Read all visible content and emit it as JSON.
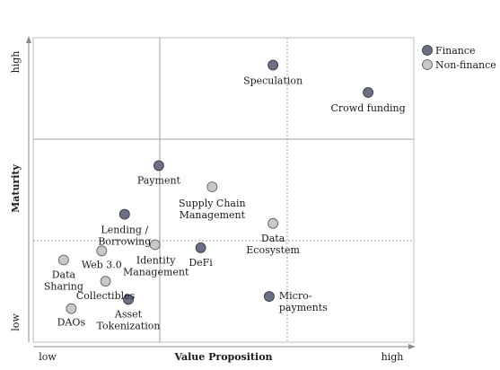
{
  "chart_data": {
    "type": "scatter",
    "title": "",
    "xlabel": "Value Proposition",
    "ylabel": "Maturity",
    "x_tick_labels": {
      "low": "low",
      "high": "high"
    },
    "y_tick_labels": {
      "low": "low",
      "high": "high"
    },
    "xlim": [
      0,
      100
    ],
    "ylim": [
      0,
      100
    ],
    "grid": "quadrant grid (thirds), solid at x=33.3, dotted at x=66.7; solid at y=66.7, dotted at y=33.3",
    "legend_position": "top-right",
    "colors": {
      "Finance": "#6b7085",
      "Non-finance": "#c8c8c8"
    },
    "series": [
      {
        "name": "Finance",
        "points": [
          {
            "label": "Speculation",
            "x": 63,
            "y": 91
          },
          {
            "label": "Crowd funding",
            "x": 88,
            "y": 82
          },
          {
            "label": "Payment",
            "x": 33,
            "y": 58
          },
          {
            "label": "Lending / Borrowing",
            "x": 24,
            "y": 42
          },
          {
            "label": "DeFi",
            "x": 44,
            "y": 31
          },
          {
            "label": "Micro-payments",
            "x": 62,
            "y": 15
          },
          {
            "label": "Asset Tokenization",
            "x": 25,
            "y": 14
          }
        ]
      },
      {
        "name": "Non-finance",
        "points": [
          {
            "label": "Supply Chain Management",
            "x": 47,
            "y": 51
          },
          {
            "label": "Data Ecosystem",
            "x": 63,
            "y": 39
          },
          {
            "label": "Identity Management",
            "x": 32,
            "y": 32
          },
          {
            "label": "Web 3.0",
            "x": 18,
            "y": 30
          },
          {
            "label": "Data Sharing",
            "x": 8,
            "y": 27
          },
          {
            "label": "Collectibles",
            "x": 19,
            "y": 20
          },
          {
            "label": "DAOs",
            "x": 10,
            "y": 11
          }
        ]
      }
    ]
  }
}
